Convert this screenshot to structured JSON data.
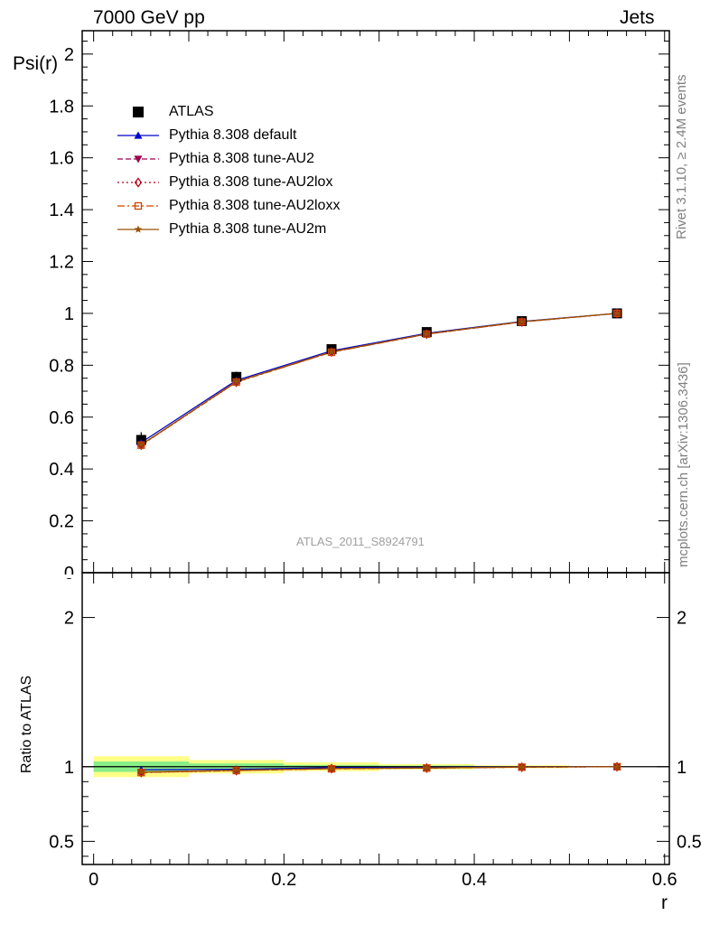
{
  "header": {
    "left": "7000 GeV pp",
    "right": "Jets"
  },
  "side_labels": {
    "rivet": "Rivet 3.1.10, ≥ 2.4M events",
    "mcplots": "mcplots.cern.ch [arXiv:1306.3436]"
  },
  "watermark": "ATLAS_2011_S8924791",
  "colors": {
    "data": "#000000",
    "default": "#0000cc",
    "au2": "#99004d",
    "au2lox": "#b3001a",
    "au2loxx": "#cc4400",
    "au2m": "#995200",
    "band_yellow": "#ffff88",
    "band_green": "#88ee88"
  },
  "chart_data": [
    {
      "type": "line",
      "title": "",
      "xlabel": "r",
      "ylabel": "Psi(r)",
      "xlim": [
        -0.012,
        0.605
      ],
      "ylim": [
        0,
        2.09
      ],
      "yticks": [
        0,
        0.2,
        0.4,
        0.6,
        0.8,
        1,
        1.2,
        1.4,
        1.6,
        1.8,
        2
      ],
      "ytick_labels": [
        "0",
        "0.2",
        "0.4",
        "0.6",
        "0.8",
        "1",
        "1.2",
        "1.4",
        "1.6",
        "1.8",
        "2"
      ],
      "x": [
        0.05,
        0.15,
        0.25,
        0.35,
        0.45,
        0.55
      ],
      "legend_position": "top-left",
      "series": [
        {
          "name": "ATLAS",
          "marker": "square",
          "values": [
            0.512,
            0.755,
            0.862,
            0.928,
            0.97,
            1.0
          ],
          "yerr": [
            0.03,
            0.02,
            0.012,
            0.008,
            0.004,
            0.0
          ]
        },
        {
          "name": "Pythia 8.308 default",
          "marker": "triangle-up",
          "line": "solid",
          "values": [
            0.502,
            0.742,
            0.856,
            0.923,
            0.969,
            1.0
          ]
        },
        {
          "name": "Pythia 8.308 tune-AU2",
          "marker": "triangle-down",
          "line": "dashed",
          "values": [
            0.493,
            0.736,
            0.851,
            0.92,
            0.967,
            1.0
          ]
        },
        {
          "name": "Pythia 8.308 tune-AU2lox",
          "marker": "diamond-open",
          "line": "dotted",
          "values": [
            0.492,
            0.735,
            0.851,
            0.92,
            0.967,
            1.0
          ]
        },
        {
          "name": "Pythia 8.308 tune-AU2loxx",
          "marker": "square-open",
          "line": "dashdot",
          "values": [
            0.492,
            0.735,
            0.85,
            0.92,
            0.967,
            1.0
          ]
        },
        {
          "name": "Pythia 8.308 tune-AU2m",
          "marker": "star",
          "line": "solid",
          "values": [
            0.494,
            0.737,
            0.852,
            0.921,
            0.968,
            1.0
          ]
        }
      ]
    },
    {
      "type": "line",
      "title": "",
      "xlabel": "r",
      "ylabel": "Ratio to ATLAS",
      "xlim": [
        -0.012,
        0.605
      ],
      "ylim": [
        0.345,
        2.3
      ],
      "yticks": [
        0.5,
        1,
        2
      ],
      "ytick_labels": [
        "0.5",
        "1",
        "2"
      ],
      "xticks": [
        0,
        0.2,
        0.4,
        0.6
      ],
      "xtick_labels": [
        "0",
        "0.2",
        "0.4",
        "0.6"
      ],
      "x": [
        0.05,
        0.15,
        0.25,
        0.35,
        0.45,
        0.55
      ],
      "bands": {
        "x_edges": [
          0.0,
          0.1,
          0.2,
          0.3,
          0.4,
          0.5,
          0.6
        ],
        "total": [
          0.07,
          0.045,
          0.03,
          0.018,
          0.01,
          0.0
        ],
        "stat": [
          0.035,
          0.022,
          0.012,
          0.008,
          0.004,
          0.0
        ]
      },
      "series": [
        {
          "name": "Pythia 8.308 default",
          "values": [
            0.98,
            0.983,
            0.993,
            0.995,
            0.999,
            1.0
          ]
        },
        {
          "name": "Pythia 8.308 tune-AU2",
          "values": [
            0.963,
            0.975,
            0.987,
            0.991,
            0.997,
            1.0
          ]
        },
        {
          "name": "Pythia 8.308 tune-AU2lox",
          "values": [
            0.961,
            0.974,
            0.987,
            0.991,
            0.997,
            1.0
          ]
        },
        {
          "name": "Pythia 8.308 tune-AU2loxx",
          "values": [
            0.961,
            0.974,
            0.986,
            0.991,
            0.997,
            1.0
          ]
        },
        {
          "name": "Pythia 8.308 tune-AU2m",
          "values": [
            0.965,
            0.976,
            0.988,
            0.992,
            0.998,
            1.0
          ]
        }
      ]
    }
  ]
}
